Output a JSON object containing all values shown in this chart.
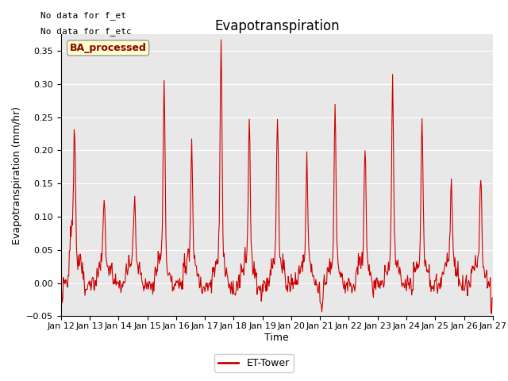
{
  "title": "Evapotranspiration",
  "xlabel": "Time",
  "ylabel": "Evapotranspiration (mm/hr)",
  "ylim": [
    -0.05,
    0.375
  ],
  "yticks": [
    -0.05,
    0.0,
    0.05,
    0.1,
    0.15,
    0.2,
    0.25,
    0.3,
    0.35
  ],
  "line_color": "#cc0000",
  "line_width": 0.8,
  "legend_label": "ET-Tower",
  "legend_line_color": "#cc0000",
  "annotation_text1": "No data for f_et",
  "annotation_text2": "No data for f_etc",
  "box_label": "BA_processed",
  "box_facecolor": "#ffffcc",
  "box_edgecolor": "#999999",
  "box_text_color": "#8b0000",
  "plot_bg_color": "#e8e8e8",
  "title_fontsize": 12,
  "axis_fontsize": 9,
  "tick_fontsize": 8,
  "figsize": [
    6.4,
    4.8
  ],
  "dpi": 100
}
